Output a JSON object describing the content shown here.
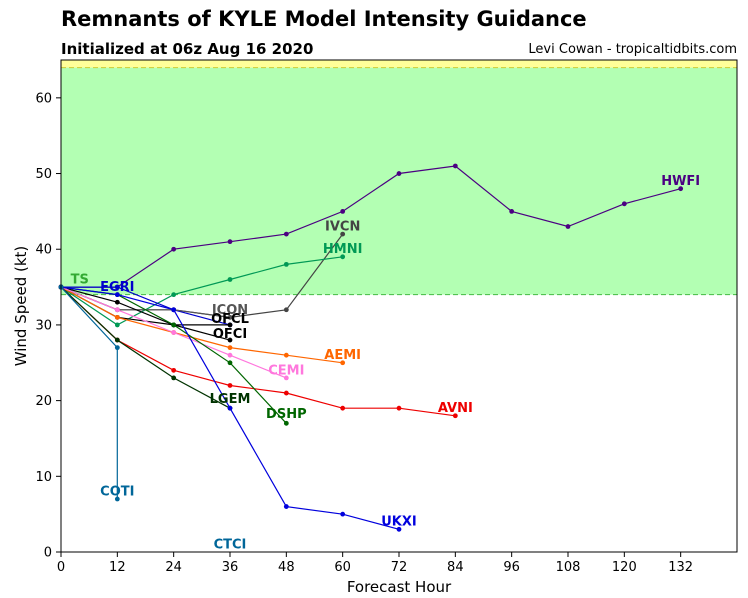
{
  "header": {
    "title": "Remnants of KYLE Model Intensity Guidance",
    "subtitle": "Initialized at 06z Aug 16 2020",
    "credit": "Levi Cowan - tropicaltidbits.com"
  },
  "chart_data": {
    "type": "line",
    "title": "Remnants of KYLE Model Intensity Guidance",
    "subtitle": "Initialized at 06z Aug 16 2020",
    "xlabel": "Forecast Hour",
    "ylabel": "Wind Speed (kt)",
    "xlim": [
      0,
      144
    ],
    "ylim": [
      0,
      65
    ],
    "xticks": [
      0,
      12,
      24,
      36,
      48,
      60,
      72,
      84,
      96,
      108,
      120,
      132
    ],
    "yticks": [
      0,
      10,
      20,
      30,
      40,
      50,
      60
    ],
    "bands": [
      {
        "from": 34,
        "to": 64,
        "color": "#b3ffb3",
        "edge": "#44bb44"
      },
      {
        "from": 64,
        "to": 65,
        "color": "#ffff99",
        "edge": "#cccc33"
      }
    ],
    "series": [
      {
        "name": "HWFI",
        "color": "#4b0082",
        "x": [
          0,
          12,
          24,
          36,
          48,
          60,
          72,
          84,
          96,
          108,
          120,
          132
        ],
        "y": [
          35,
          35,
          40,
          41,
          42,
          45,
          50,
          51,
          45,
          43,
          46,
          48
        ]
      },
      {
        "name": "IVCN",
        "color": "#444444",
        "x": [
          0,
          12,
          24,
          36,
          48,
          60
        ],
        "y": [
          35,
          32,
          32,
          31,
          32,
          42
        ]
      },
      {
        "name": "HMNI",
        "color": "#009955",
        "x": [
          0,
          12,
          24,
          36,
          48,
          60
        ],
        "y": [
          35,
          30,
          34,
          36,
          38,
          39
        ]
      },
      {
        "name": "TS",
        "color": "#33aa33",
        "x": [
          0
        ],
        "y": [
          35
        ]
      },
      {
        "name": "EGRI",
        "color": "#0000cc",
        "x": [
          0,
          12,
          24,
          36
        ],
        "y": [
          35,
          35,
          32,
          30
        ]
      },
      {
        "name": "ICON",
        "color": "#555555",
        "x": [
          0,
          12,
          24,
          36
        ],
        "y": [
          35,
          32,
          32,
          31
        ]
      },
      {
        "name": "OFCL",
        "color": "#000000",
        "x": [
          0,
          12,
          24,
          36
        ],
        "y": [
          35,
          33,
          30,
          30
        ]
      },
      {
        "name": "OFCI",
        "color": "#000000",
        "x": [
          0,
          12,
          24,
          36
        ],
        "y": [
          35,
          31,
          30,
          28
        ]
      },
      {
        "name": "AEMI",
        "color": "#ff6600",
        "x": [
          0,
          12,
          24,
          36,
          48,
          60
        ],
        "y": [
          35,
          31,
          29,
          27,
          26,
          25
        ]
      },
      {
        "name": "CEMI",
        "color": "#ff77dd",
        "x": [
          0,
          12,
          24,
          36,
          48
        ],
        "y": [
          35,
          32,
          29,
          26,
          23
        ]
      },
      {
        "name": "AVNI",
        "color": "#ee0000",
        "x": [
          0,
          12,
          24,
          36,
          48,
          60,
          72,
          84
        ],
        "y": [
          35,
          28,
          24,
          22,
          21,
          19,
          19,
          18
        ]
      },
      {
        "name": "LGEM",
        "color": "#003300",
        "x": [
          0,
          12,
          24,
          36
        ],
        "y": [
          35,
          28,
          23,
          19
        ]
      },
      {
        "name": "DSHP",
        "color": "#006600",
        "x": [
          0,
          12,
          24,
          36,
          48
        ],
        "y": [
          35,
          34,
          30,
          25,
          17
        ]
      },
      {
        "name": "UKXI",
        "color": "#0000dd",
        "x": [
          0,
          12,
          24,
          36,
          48,
          60,
          72
        ],
        "y": [
          35,
          34,
          32,
          19,
          6,
          5,
          3
        ]
      },
      {
        "name": "COTI",
        "color": "#006699",
        "x": [
          0,
          12,
          12
        ],
        "y": [
          35,
          27,
          7
        ]
      },
      {
        "name": "CTCI",
        "color": "#006699",
        "x": [],
        "y": []
      }
    ],
    "labels": [
      {
        "text": "HWFI",
        "x": 132,
        "y": 49,
        "color": "#4b0082"
      },
      {
        "text": "IVCN",
        "x": 60,
        "y": 43,
        "color": "#444444"
      },
      {
        "text": "HMNI",
        "x": 60,
        "y": 40,
        "color": "#009955"
      },
      {
        "text": "TS",
        "x": 4,
        "y": 36,
        "color": "#33aa33"
      },
      {
        "text": "EGRI",
        "x": 12,
        "y": 35,
        "color": "#0000cc"
      },
      {
        "text": "ICON",
        "x": 36,
        "y": 32,
        "color": "#555555"
      },
      {
        "text": "OFCL",
        "x": 36,
        "y": 30.8,
        "color": "#000000"
      },
      {
        "text": "OFCI",
        "x": 36,
        "y": 28.8,
        "color": "#000000"
      },
      {
        "text": "AEMI",
        "x": 60,
        "y": 26,
        "color": "#ff6600"
      },
      {
        "text": "CEMI",
        "x": 48,
        "y": 24,
        "color": "#ff77dd"
      },
      {
        "text": "AVNI",
        "x": 84,
        "y": 19,
        "color": "#ee0000"
      },
      {
        "text": "LGEM",
        "x": 36,
        "y": 20.2,
        "color": "#003300"
      },
      {
        "text": "DSHP",
        "x": 48,
        "y": 18.2,
        "color": "#006600"
      },
      {
        "text": "UKXI",
        "x": 72,
        "y": 4,
        "color": "#0000dd"
      },
      {
        "text": "COTI",
        "x": 12,
        "y": 8,
        "color": "#006699"
      },
      {
        "text": "CTCI",
        "x": 36,
        "y": 1,
        "color": "#006699"
      }
    ]
  }
}
